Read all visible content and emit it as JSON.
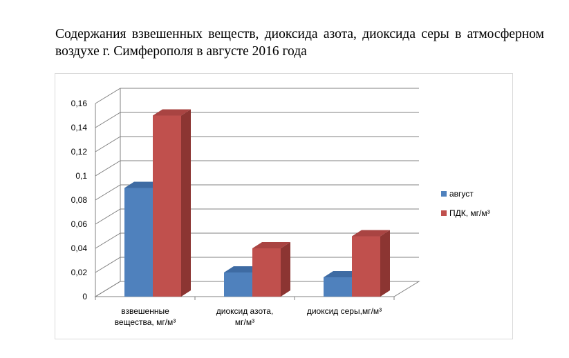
{
  "title": "Содержания взвешенных веществ, диоксида азота, диоксида серы в атмосферном воздухе г. Симферополя в августе 2016 года",
  "chart_data": {
    "type": "bar",
    "style": "3d-clustered-column",
    "categories": [
      [
        "взвешенные",
        "вещества, мг/м³"
      ],
      [
        "диоксид азота,",
        "мг/м³"
      ],
      [
        "диоксид серы,мг/м³"
      ]
    ],
    "series": [
      {
        "name": "август",
        "values": [
          0.09,
          0.02,
          0.016
        ],
        "color": "#4F81BD",
        "top": "#3E6BA3",
        "side": "#2F5A8C"
      },
      {
        "name": "ПДК, мг/м³",
        "values": [
          0.15,
          0.04,
          0.05
        ],
        "color": "#C0504D",
        "top": "#A94442",
        "side": "#8C3532"
      }
    ],
    "ylim": [
      0,
      0.16
    ],
    "yticks": [
      "0",
      "0,02",
      "0,04",
      "0,06",
      "0,08",
      "0,1",
      "0,12",
      "0,14",
      "0,16"
    ],
    "grid": true,
    "legend": "right"
  }
}
